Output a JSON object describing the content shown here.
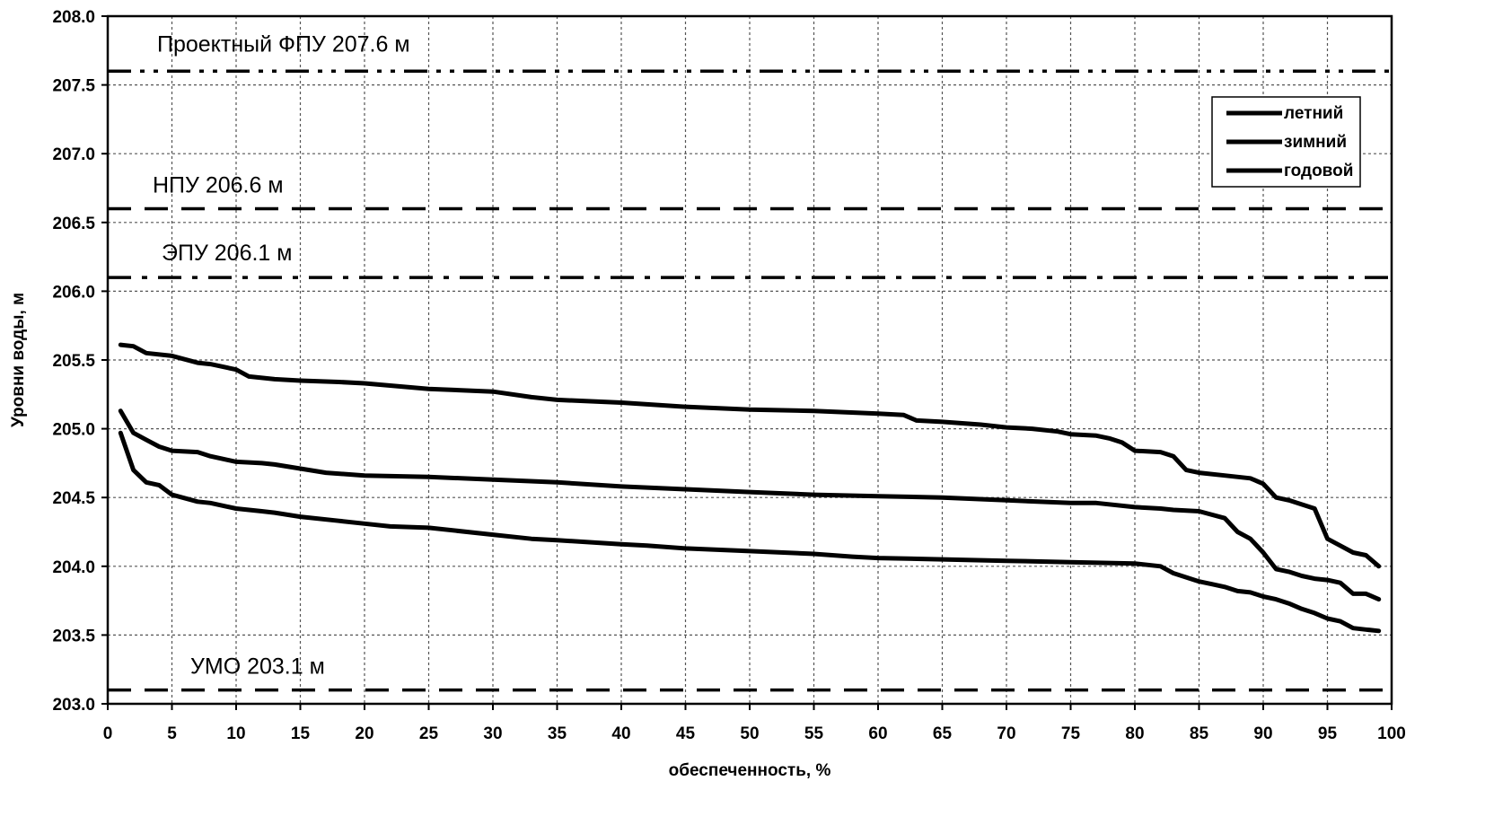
{
  "chart_data": {
    "type": "line",
    "xlabel": "обеспеченность, %",
    "ylabel": "Уровни воды, м",
    "xlim": [
      0,
      100
    ],
    "ylim": [
      203.0,
      208.0
    ],
    "x_ticks": [
      0,
      5,
      10,
      15,
      20,
      25,
      30,
      35,
      40,
      45,
      50,
      55,
      60,
      65,
      70,
      75,
      80,
      85,
      90,
      95,
      100
    ],
    "y_ticks": [
      203.0,
      203.5,
      204.0,
      204.5,
      205.0,
      205.5,
      206.0,
      206.5,
      207.0,
      207.5,
      208.0
    ],
    "y_tick_labels": [
      "203.0",
      "203.5",
      "204.0",
      "204.5",
      "205.0",
      "205.5",
      "206.0",
      "206.5",
      "207.0",
      "207.5",
      "208.0"
    ],
    "grid": true,
    "legend_position": "top-right",
    "reference_lines": [
      {
        "label": "Проектный ФПУ 207.6 м",
        "y": 207.6,
        "style": "dash-dot-dot"
      },
      {
        "label": "НПУ 206.6 м",
        "y": 206.6,
        "style": "dash"
      },
      {
        "label": "ЭПУ 206.1 м",
        "y": 206.1,
        "style": "dash-dot"
      },
      {
        "label": "УМО 203.1 м",
        "y": 203.1,
        "style": "dash"
      }
    ],
    "series": [
      {
        "name": "летний",
        "x": [
          1,
          2,
          3,
          5,
          7,
          8,
          10,
          11,
          13,
          15,
          18,
          20,
          25,
          30,
          33,
          35,
          40,
          45,
          50,
          55,
          60,
          62,
          63,
          65,
          68,
          70,
          72,
          74,
          75,
          77,
          78,
          79,
          80,
          82,
          83,
          84,
          85,
          87,
          89,
          90,
          91,
          92,
          93,
          94,
          95,
          96,
          97,
          98,
          99
        ],
        "values": [
          205.61,
          205.6,
          205.55,
          205.53,
          205.48,
          205.47,
          205.43,
          205.38,
          205.36,
          205.35,
          205.34,
          205.33,
          205.29,
          205.27,
          205.23,
          205.21,
          205.19,
          205.16,
          205.14,
          205.13,
          205.11,
          205.1,
          205.06,
          205.05,
          205.03,
          205.01,
          205.0,
          204.98,
          204.96,
          204.95,
          204.93,
          204.9,
          204.84,
          204.83,
          204.8,
          204.7,
          204.68,
          204.66,
          204.64,
          204.6,
          204.5,
          204.48,
          204.45,
          204.42,
          204.2,
          204.15,
          204.1,
          204.08,
          204.0
        ]
      },
      {
        "name": "зимний",
        "x": [
          1,
          2,
          3,
          4,
          5,
          7,
          8,
          10,
          12,
          13,
          15,
          17,
          20,
          25,
          30,
          35,
          40,
          45,
          50,
          55,
          60,
          65,
          70,
          75,
          77,
          80,
          82,
          83,
          85,
          87,
          88,
          89,
          90,
          91,
          92,
          93,
          94,
          95,
          96,
          97,
          98,
          99
        ],
        "values": [
          205.13,
          204.97,
          204.92,
          204.87,
          204.84,
          204.83,
          204.8,
          204.76,
          204.75,
          204.74,
          204.71,
          204.68,
          204.66,
          204.65,
          204.63,
          204.61,
          204.58,
          204.56,
          204.54,
          204.52,
          204.51,
          204.5,
          204.48,
          204.46,
          204.46,
          204.43,
          204.42,
          204.41,
          204.4,
          204.35,
          204.25,
          204.2,
          204.1,
          203.98,
          203.96,
          203.93,
          203.91,
          203.9,
          203.88,
          203.8,
          203.8,
          203.76
        ]
      },
      {
        "name": "годовой",
        "x": [
          1,
          2,
          3,
          4,
          5,
          7,
          8,
          10,
          12,
          13,
          15,
          18,
          20,
          22,
          25,
          30,
          33,
          35,
          40,
          42,
          45,
          50,
          55,
          58,
          60,
          65,
          70,
          75,
          80,
          82,
          83,
          85,
          86,
          87,
          88,
          89,
          90,
          91,
          92,
          93,
          94,
          95,
          96,
          97,
          98,
          99
        ],
        "values": [
          204.97,
          204.7,
          204.61,
          204.59,
          204.52,
          204.47,
          204.46,
          204.42,
          204.4,
          204.39,
          204.36,
          204.33,
          204.31,
          204.29,
          204.28,
          204.23,
          204.2,
          204.19,
          204.16,
          204.15,
          204.13,
          204.11,
          204.09,
          204.07,
          204.06,
          204.05,
          204.04,
          204.03,
          204.02,
          204.0,
          203.95,
          203.89,
          203.87,
          203.85,
          203.82,
          203.81,
          203.78,
          203.76,
          203.73,
          203.69,
          203.66,
          203.62,
          203.6,
          203.55,
          203.54,
          203.53
        ]
      }
    ]
  }
}
